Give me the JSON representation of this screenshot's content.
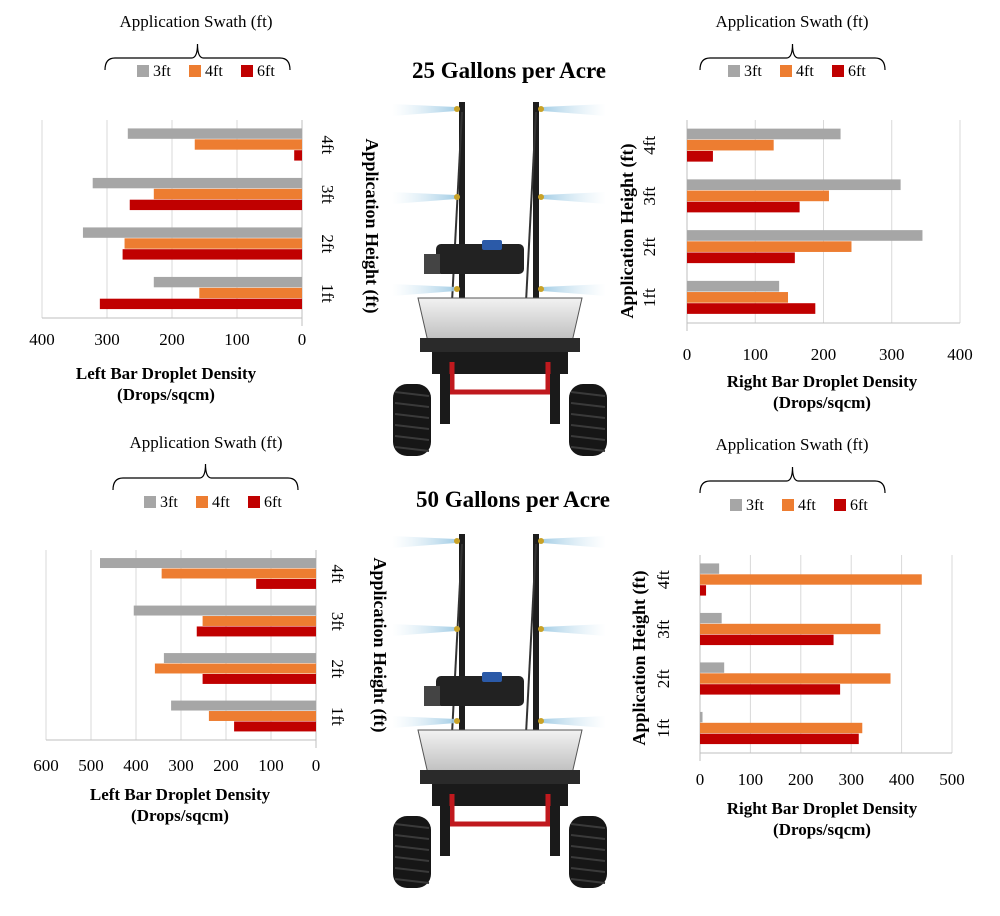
{
  "figure": {
    "title_top": "25 Gallons per Acre",
    "title_bottom": "50 Gallons per Acre"
  },
  "colors": {
    "3ft": "#a6a6a6",
    "4ft": "#ed7d31",
    "6ft": "#c00000",
    "grid": "#d9d9d9",
    "axis": "#bfbfbf"
  },
  "chart_data": [
    {
      "id": "top-left",
      "type": "bar",
      "orientation": "horizontal",
      "x_direction": "reversed",
      "swath_label": "Application Swath (ft)",
      "legend": [
        "3ft",
        "4ft",
        "6ft"
      ],
      "categories": [
        "4ft",
        "3ft",
        "2ft",
        "1ft"
      ],
      "height_label": "Application Height (ft)",
      "xlabel_line1": "Left  Bar Droplet Density",
      "xlabel_line2": "(Drops/sqcm)",
      "xlim": [
        0,
        400
      ],
      "xticks": [
        0,
        100,
        200,
        300,
        400
      ],
      "series": [
        {
          "name": "3ft",
          "values": [
            268,
            322,
            337,
            228
          ]
        },
        {
          "name": "4ft",
          "values": [
            165,
            228,
            273,
            158
          ]
        },
        {
          "name": "6ft",
          "values": [
            12,
            265,
            276,
            311
          ]
        }
      ]
    },
    {
      "id": "top-right",
      "type": "bar",
      "orientation": "horizontal",
      "x_direction": "normal",
      "swath_label": "Application Swath (ft)",
      "legend": [
        "3ft",
        "4ft",
        "6ft"
      ],
      "categories": [
        "4ft",
        "3ft",
        "2ft",
        "1ft"
      ],
      "height_label": "Application Height (ft)",
      "xlabel_line1": "Right Bar Droplet Density",
      "xlabel_line2": "(Drops/sqcm)",
      "xlim": [
        0,
        400
      ],
      "xticks": [
        0,
        100,
        200,
        300,
        400
      ],
      "series": [
        {
          "name": "3ft",
          "values": [
            225,
            313,
            345,
            135
          ]
        },
        {
          "name": "4ft",
          "values": [
            127,
            208,
            241,
            148
          ]
        },
        {
          "name": "6ft",
          "values": [
            38,
            165,
            158,
            188
          ]
        }
      ]
    },
    {
      "id": "bottom-left",
      "type": "bar",
      "orientation": "horizontal",
      "x_direction": "reversed",
      "swath_label": "Application Swath (ft)",
      "legend": [
        "3ft",
        "4ft",
        "6ft"
      ],
      "categories": [
        "4ft",
        "3ft",
        "2ft",
        "1ft"
      ],
      "height_label": "Application Height (ft)",
      "xlabel_line1": "Left  Bar Droplet Density",
      "xlabel_line2": "(Drops/sqcm)",
      "xlim": [
        0,
        600
      ],
      "xticks": [
        0,
        100,
        200,
        300,
        400,
        500,
        600
      ],
      "series": [
        {
          "name": "3ft",
          "values": [
            480,
            405,
            338,
            322
          ]
        },
        {
          "name": "4ft",
          "values": [
            343,
            252,
            358,
            238
          ]
        },
        {
          "name": "6ft",
          "values": [
            133,
            265,
            252,
            182
          ]
        }
      ]
    },
    {
      "id": "bottom-right",
      "type": "bar",
      "orientation": "horizontal",
      "x_direction": "normal",
      "swath_label": "Application Swath (ft)",
      "legend": [
        "3ft",
        "4ft",
        "6ft"
      ],
      "categories": [
        "4ft",
        "3ft",
        "2ft",
        "1ft"
      ],
      "height_label": "Application Height (ft)",
      "xlabel_line1": "Right Bar Droplet Density",
      "xlabel_line2": "(Drops/sqcm)",
      "xlim": [
        0,
        500
      ],
      "xticks": [
        0,
        100,
        200,
        300,
        400,
        500
      ],
      "series": [
        {
          "name": "3ft",
          "values": [
            38,
            43,
            48,
            5
          ]
        },
        {
          "name": "4ft",
          "values": [
            440,
            358,
            378,
            322
          ]
        },
        {
          "name": "6ft",
          "values": [
            12,
            265,
            278,
            315
          ]
        }
      ]
    }
  ]
}
